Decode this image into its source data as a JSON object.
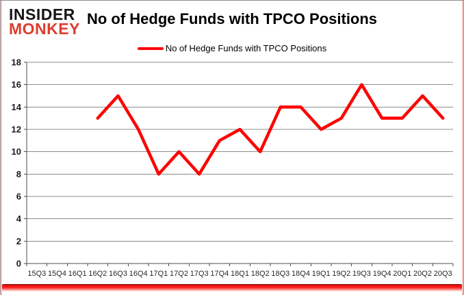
{
  "logo": {
    "line1": "INSIDER",
    "line2": "MONKEY"
  },
  "header": {
    "title": "No of Hedge Funds with TPCO Positions"
  },
  "legend": {
    "label": "No of Hedge Funds with TPCO Positions",
    "line_color": "#ff0000"
  },
  "chart_data": {
    "type": "line",
    "title": "No of Hedge Funds with TPCO Positions",
    "xlabel": "",
    "ylabel": "",
    "categories": [
      "15Q3",
      "15Q4",
      "16Q1",
      "16Q2",
      "16Q3",
      "16Q4",
      "17Q1",
      "17Q2",
      "17Q3",
      "17Q4",
      "18Q1",
      "18Q2",
      "18Q3",
      "18Q4",
      "19Q1",
      "19Q2",
      "19Q3",
      "19Q4",
      "20Q1",
      "20Q2",
      "20Q3"
    ],
    "series": [
      {
        "name": "No of Hedge Funds with TPCO Positions",
        "color": "#ff0000",
        "values": [
          null,
          null,
          null,
          13,
          15,
          12,
          8,
          10,
          8,
          11,
          12,
          10,
          14,
          14,
          12,
          13,
          16,
          13,
          13,
          15,
          13
        ]
      }
    ],
    "ylim": [
      0,
      18
    ],
    "ytick_step": 2,
    "grid": true,
    "legend_position": "top"
  },
  "colors": {
    "accent_red": "#ff0000",
    "logo_red": "#de3d2e",
    "grid": "#8c8c8c",
    "axis": "#4d4d4d",
    "border_pink": "#f5c6c2",
    "bottom_bar_red": "#e8100f"
  }
}
